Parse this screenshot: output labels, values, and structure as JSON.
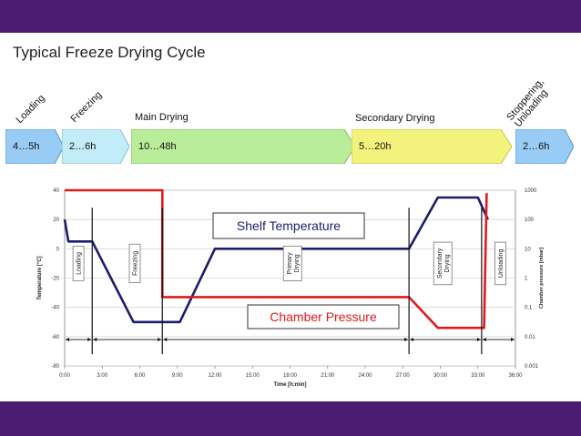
{
  "header": {
    "title": "Typical Freeze Drying Cycle"
  },
  "phases": [
    {
      "rotated_label": "Loading",
      "box_text": "4…5h",
      "color": "#99ccf5"
    },
    {
      "rotated_label": "Freezing",
      "box_text": "2…6h",
      "color": "#c2ecf7"
    },
    {
      "label": "Main Drying",
      "box_text": "10…48h",
      "color": "#b9ed9a"
    },
    {
      "label": "Secondary Drying",
      "box_text": "5…20h",
      "color": "#f3f27c"
    },
    {
      "rotated_label": "Stoppering,\nUnloading",
      "box_text": "2…6h",
      "color": "#99ccf5"
    }
  ],
  "chart_data": {
    "type": "line",
    "xlabel": "Time [h:min]",
    "ylabel_left": "Temperature [°C]",
    "ylabel_right": "Chamber pressure [mbar]",
    "x_ticks": [
      "0:00",
      "3:00",
      "6:00",
      "9:00",
      "12:00",
      "15:00",
      "18:00",
      "21:00",
      "24:00",
      "27:00",
      "30:00",
      "33:00",
      "36:00"
    ],
    "y_left_ticks": [
      "40",
      "20",
      "0",
      "-20",
      "-40",
      "-60",
      "-80"
    ],
    "y_right_ticks": [
      "1000",
      "100",
      "10",
      "1",
      "0.1",
      "0.01",
      "0.001"
    ],
    "xlim": [
      0,
      36
    ],
    "ylim_left": [
      -80,
      40
    ],
    "ylim_right_log10": [
      -3,
      3
    ],
    "series": [
      {
        "name": "Shelf Temperature",
        "color": "#1c1c6e",
        "axis": "left",
        "points": [
          [
            0,
            20
          ],
          [
            0.3,
            5
          ],
          [
            2.2,
            5
          ],
          [
            5.5,
            -50
          ],
          [
            9.2,
            -50
          ],
          [
            12,
            0
          ],
          [
            27.5,
            0
          ],
          [
            29.8,
            35
          ],
          [
            33,
            35
          ],
          [
            33.8,
            20
          ]
        ]
      },
      {
        "name": "Chamber Pressure",
        "color": "#e01b1b",
        "axis": "left",
        "points": [
          [
            0,
            40
          ],
          [
            7.8,
            40
          ],
          [
            7.8,
            -33
          ],
          [
            27.5,
            -33
          ],
          [
            29.8,
            -54
          ],
          [
            33.5,
            -54
          ],
          [
            33.7,
            38
          ]
        ]
      }
    ],
    "annotations": [
      {
        "text": "Shelf Temperature",
        "color": "#1c1c6e"
      },
      {
        "text": "Chamber Pressure",
        "color": "#e01b1b"
      }
    ],
    "phase_markers": [
      {
        "text": "Loading",
        "x": 1.1
      },
      {
        "text": "Freezing",
        "x": 5.6
      },
      {
        "text": "Primary\nDrying",
        "x": 18.2
      },
      {
        "text": "Secondary\nDrying",
        "x": 30.2
      },
      {
        "text": "Unloading",
        "x": 34.8
      }
    ],
    "phase_boundaries": [
      0,
      2.2,
      7.8,
      27.5,
      33.3,
      36
    ]
  }
}
